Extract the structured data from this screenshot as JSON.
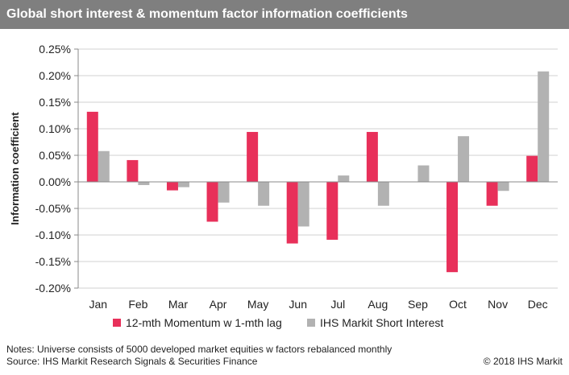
{
  "title": "Global short interest & momentum factor information coefficients",
  "notes": "Notes: Universe consists of 5000 developed market equities w factors rebalanced monthly",
  "source": "Source: IHS Markit Research Signals & Securities Finance",
  "copyright": "© 2018 IHS Markit",
  "chart_data": {
    "type": "bar",
    "title": "Global short interest & momentum factor information coefficients",
    "ylabel": "Information coefficient",
    "xlabel": "",
    "ylim": [
      -0.2,
      0.25
    ],
    "ytick_labels": [
      "0.25%",
      "0.20%",
      "0.15%",
      "0.10%",
      "0.05%",
      "0.00%",
      "-0.05%",
      "-0.10%",
      "-0.15%",
      "-0.20%"
    ],
    "ytick_values": [
      0.25,
      0.2,
      0.15,
      0.1,
      0.05,
      0.0,
      -0.05,
      -0.1,
      -0.15,
      -0.2
    ],
    "grid": true,
    "legend_position": "bottom",
    "categories": [
      "Jan",
      "Feb",
      "Mar",
      "Apr",
      "May",
      "Jun",
      "Jul",
      "Aug",
      "Sep",
      "Oct",
      "Nov",
      "Dec"
    ],
    "series": [
      {
        "name": "12-mth Momentum w 1-mth lag",
        "color": "#e8305a",
        "values": [
          0.132,
          0.041,
          -0.016,
          -0.075,
          0.094,
          -0.116,
          -0.109,
          0.094,
          0.0,
          -0.17,
          -0.045,
          0.049
        ]
      },
      {
        "name": "IHS Markit Short Interest",
        "color": "#b2b2b2",
        "values": [
          0.058,
          -0.006,
          -0.01,
          -0.039,
          -0.045,
          -0.084,
          0.012,
          -0.045,
          0.031,
          0.086,
          -0.017,
          0.208
        ]
      }
    ]
  }
}
